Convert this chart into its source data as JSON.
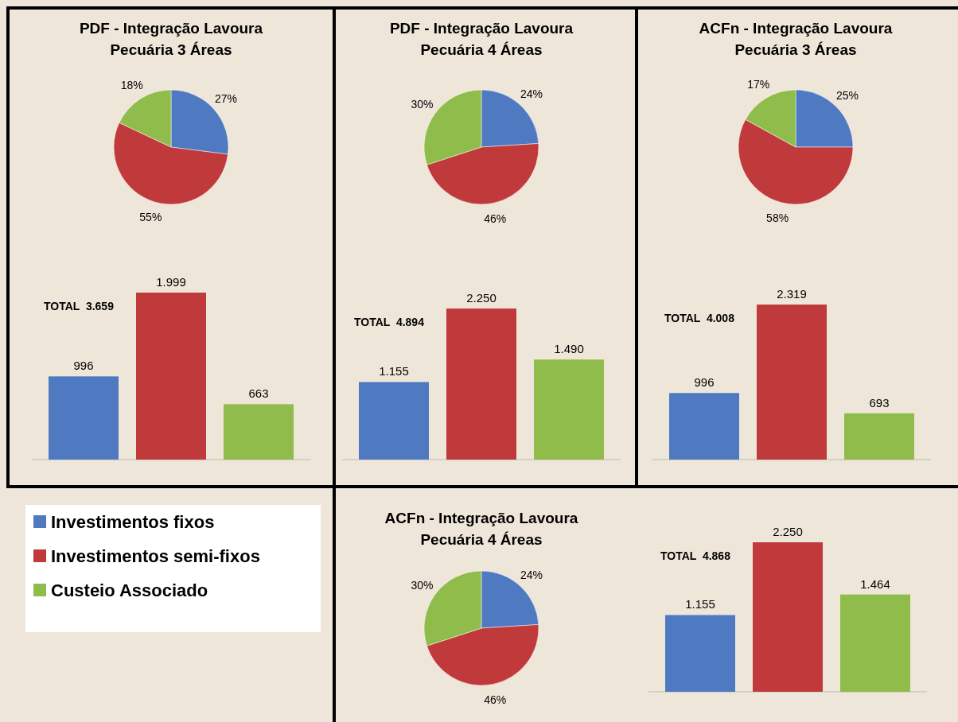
{
  "chart_data": [
    {
      "type": "pie",
      "title": "PDF - Integração Lavoura Pecuária 3 Áreas",
      "categories": [
        "Investimentos fixos",
        "Investimentos semi-fixos",
        "Custeio Associado"
      ],
      "values": [
        27,
        55,
        18
      ],
      "value_labels": [
        "27%",
        "55%",
        "18%"
      ],
      "colors": [
        "#4f7ac2",
        "#c0393b",
        "#8fbc4a"
      ],
      "legend": "bottom"
    },
    {
      "type": "bar",
      "categories": [
        null,
        null,
        null
      ],
      "values": [
        996,
        1999,
        663
      ],
      "value_labels": [
        "996",
        "1.999",
        "663"
      ],
      "colors": [
        "#4f7ac2",
        "#c0393b",
        "#8fbc4a"
      ],
      "annotations": [
        "TOTAL  3.659"
      ]
    },
    {
      "type": "pie",
      "title": "PDF - Integração Lavoura Pecuária 4 Áreas",
      "categories": [
        null,
        null,
        null
      ],
      "values": [
        24,
        46,
        30
      ],
      "value_labels": [
        "24%",
        "46%",
        "30%"
      ],
      "colors": [
        "#4f7ac2",
        "#c0393b",
        "#8fbc4a"
      ]
    },
    {
      "type": "bar",
      "categories": [
        null,
        null,
        null
      ],
      "values": [
        1155,
        2250,
        1490
      ],
      "value_labels": [
        "1.155",
        "2.250",
        "1.490"
      ],
      "colors": [
        "#4f7ac2",
        "#c0393b",
        "#8fbc4a"
      ],
      "annotations": [
        "TOTAL  4.894"
      ]
    },
    {
      "type": "pie",
      "title": "ACFn - Integração Lavoura Pecuária 3 Áreas",
      "categories": [
        null,
        null,
        null
      ],
      "values": [
        25,
        58,
        17
      ],
      "value_labels": [
        "25%",
        "58%",
        "17%"
      ],
      "colors": [
        "#4f7ac2",
        "#c0393b",
        "#8fbc4a"
      ]
    },
    {
      "type": "bar",
      "categories": [
        null,
        null,
        null
      ],
      "values": [
        996,
        2319,
        693
      ],
      "value_labels": [
        "996",
        "2.319",
        "693"
      ],
      "colors": [
        "#4f7ac2",
        "#c0393b",
        "#8fbc4a"
      ],
      "annotations": [
        "TOTAL  4.008"
      ]
    },
    {
      "type": "pie",
      "title": "ACFn - Integração Lavoura Pecuária 4 Áreas",
      "categories": [
        null,
        null,
        null
      ],
      "values": [
        24,
        46,
        30
      ],
      "value_labels": [
        "24%",
        "46%",
        "30%"
      ],
      "colors": [
        "#4f7ac2",
        "#c0393b",
        "#8fbc4a"
      ]
    },
    {
      "type": "bar",
      "categories": [
        null,
        null,
        null
      ],
      "values": [
        1155,
        2250,
        1464
      ],
      "value_labels": [
        "1.155",
        "2.250",
        "1.464"
      ],
      "colors": [
        "#4f7ac2",
        "#c0393b",
        "#8fbc4a"
      ],
      "annotations": [
        "TOTAL  4.868"
      ]
    }
  ]
}
